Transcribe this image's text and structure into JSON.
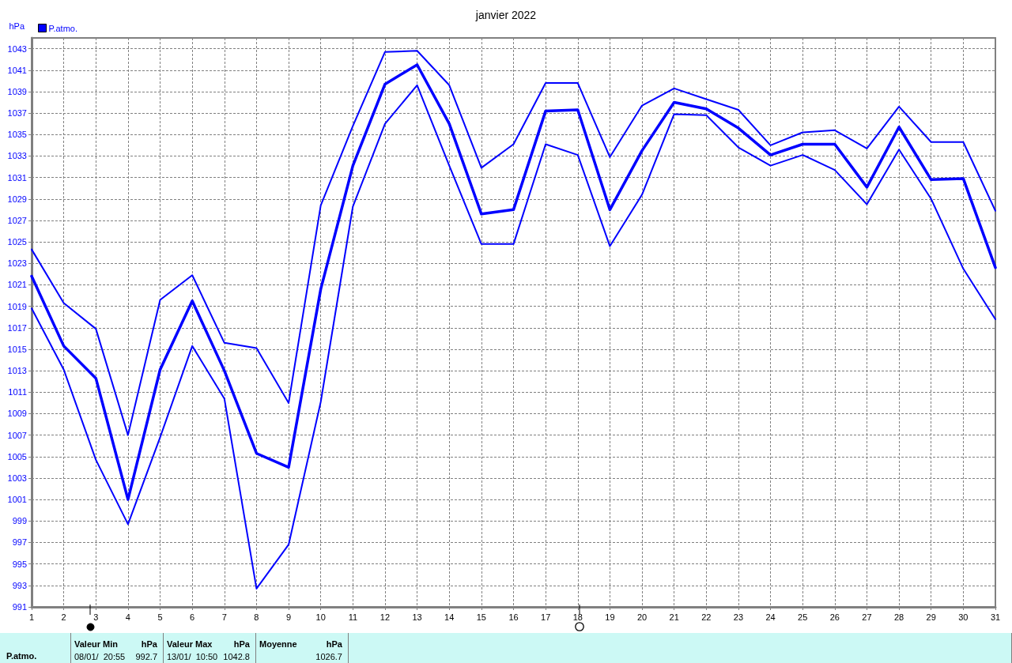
{
  "chart_data": {
    "type": "line",
    "title": "janvier 2022",
    "ylabel": "hPa",
    "x": [
      1,
      2,
      3,
      4,
      5,
      6,
      7,
      8,
      9,
      10,
      11,
      12,
      13,
      14,
      15,
      16,
      17,
      18,
      19,
      20,
      21,
      22,
      23,
      24,
      25,
      26,
      27,
      28,
      29,
      30,
      31
    ],
    "xlim": [
      1,
      31
    ],
    "xticks": [
      1,
      2,
      3,
      4,
      5,
      6,
      7,
      8,
      9,
      10,
      11,
      12,
      13,
      14,
      15,
      16,
      17,
      18,
      19,
      20,
      21,
      22,
      23,
      24,
      25,
      26,
      27,
      28,
      29,
      30,
      31
    ],
    "ylim": [
      991,
      1044
    ],
    "yticks": [
      991,
      993,
      995,
      997,
      999,
      1001,
      1003,
      1005,
      1007,
      1009,
      1011,
      1013,
      1015,
      1017,
      1019,
      1021,
      1023,
      1025,
      1027,
      1029,
      1031,
      1033,
      1035,
      1037,
      1039,
      1041,
      1043
    ],
    "grid": true,
    "legend": "top left",
    "marker": "none",
    "series": [
      {
        "color": "#0000ff",
        "values": [
          1024.3,
          1019.3,
          1016.9,
          1007.0,
          1019.6,
          1021.9,
          1015.6,
          1015.1,
          1010.0,
          1028.4,
          1035.8,
          1042.7,
          1042.8,
          1039.6,
          1031.9,
          1034.1,
          1039.8,
          1039.8,
          1032.9,
          1037.7,
          1039.3,
          1038.3,
          1037.3,
          1034.0,
          1035.2,
          1035.4,
          1033.7,
          1037.6,
          1034.3,
          1034.3,
          1027.9
        ]
      },
      {
        "name": "P.atmo.",
        "color": "#0000ff",
        "values": [
          1021.8,
          1015.3,
          1012.3,
          1001.0,
          1013.1,
          1019.5,
          1013.0,
          1005.3,
          1004.0,
          1020.6,
          1032.1,
          1039.7,
          1041.5,
          1036.0,
          1027.6,
          1028.0,
          1037.2,
          1037.3,
          1028.0,
          1033.5,
          1038.0,
          1037.4,
          1035.6,
          1033.1,
          1034.1,
          1034.1,
          1030.1,
          1035.7,
          1030.8,
          1030.9,
          1022.6
        ]
      },
      {
        "color": "#0000ff",
        "values": [
          1018.8,
          1013.1,
          1004.7,
          998.7,
          1006.8,
          1015.3,
          1010.4,
          992.7,
          996.8,
          1010.1,
          1028.3,
          1036.0,
          1039.6,
          1032.1,
          1024.8,
          1024.8,
          1034.1,
          1033.1,
          1024.6,
          1029.4,
          1036.9,
          1036.8,
          1033.8,
          1032.1,
          1033.1,
          1031.7,
          1028.5,
          1033.6,
          1029.0,
          1022.5,
          1017.8
        ]
      }
    ],
    "annotations": [
      "P.atmo.",
      "Valeur Min",
      "hPa",
      "08/01/  20:55",
      "992.7",
      "Valeur Max",
      "hPa",
      "13/01/  10:50",
      "1042.8",
      "Moyenne",
      "hPa",
      "1026.7"
    ]
  }
}
